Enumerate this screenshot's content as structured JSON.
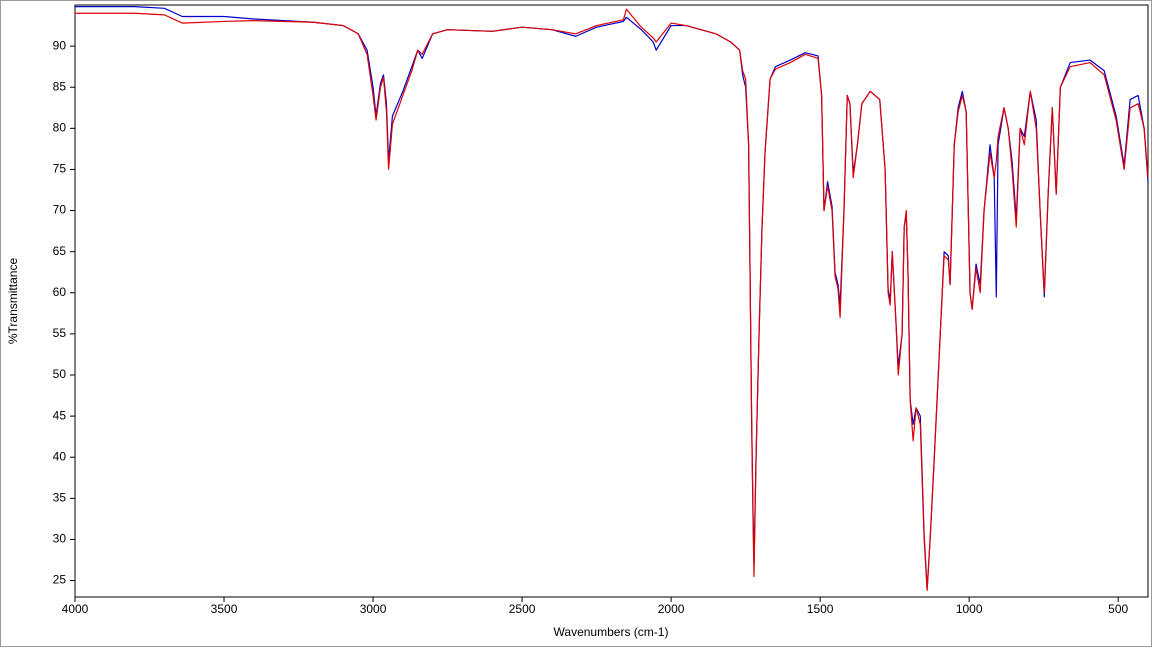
{
  "chart_data": {
    "type": "line",
    "x_label": "Wavenumbers (cm-1)",
    "y_label": "%Transmittance",
    "xlim": [
      4000,
      400
    ],
    "ylim": [
      23,
      95
    ],
    "xticks": [
      4000,
      3500,
      3000,
      2500,
      2000,
      1500,
      1000,
      500
    ],
    "yticks": [
      25,
      30,
      35,
      40,
      45,
      50,
      55,
      60,
      65,
      70,
      75,
      80,
      85,
      90
    ],
    "grid": false,
    "x": [
      4000,
      3800,
      3700,
      3640,
      3500,
      3400,
      3200,
      3100,
      3050,
      3020,
      3000,
      2990,
      2975,
      2965,
      2955,
      2948,
      2935,
      2900,
      2870,
      2850,
      2835,
      2800,
      2750,
      2600,
      2500,
      2400,
      2320,
      2250,
      2160,
      2150,
      2100,
      2060,
      2050,
      2000,
      1950,
      1900,
      1850,
      1800,
      1770,
      1760,
      1750,
      1740,
      1735,
      1730,
      1725,
      1722,
      1715,
      1705,
      1695,
      1685,
      1668,
      1650,
      1600,
      1550,
      1507,
      1495,
      1487,
      1475,
      1460,
      1450,
      1440,
      1433,
      1420,
      1409,
      1400,
      1389,
      1375,
      1360,
      1332,
      1300,
      1282,
      1272,
      1265,
      1258,
      1245,
      1238,
      1225,
      1218,
      1211,
      1205,
      1198,
      1188,
      1178,
      1164,
      1151,
      1141,
      1131,
      1117,
      1097,
      1084,
      1070,
      1064,
      1050,
      1037,
      1023,
      1010,
      997,
      990,
      977,
      963,
      950,
      930,
      916,
      909,
      903,
      883,
      869,
      856,
      842,
      829,
      815,
      795,
      775,
      762,
      748,
      735,
      721,
      708,
      694,
      661,
      594,
      547,
      507,
      480,
      460,
      433,
      413,
      400
    ],
    "series": [
      {
        "color": "#0000cc",
        "values": [
          94.8,
          94.8,
          94.6,
          93.6,
          93.6,
          93.3,
          92.9,
          92.5,
          91.5,
          89.5,
          85,
          81.5,
          85.5,
          86.5,
          83,
          76,
          81.5,
          84.5,
          87.5,
          89.5,
          88.5,
          91.5,
          92,
          91.8,
          92.3,
          92,
          91.2,
          92.3,
          93,
          93.5,
          92,
          90.5,
          89.5,
          92.5,
          92.5,
          92,
          91.5,
          90.5,
          89.5,
          86.5,
          85,
          78,
          62,
          45,
          33,
          27,
          40,
          55,
          68,
          77,
          86,
          87.5,
          88.3,
          89.2,
          88.8,
          84,
          70,
          73.5,
          70.5,
          62.5,
          61,
          58.5,
          70,
          84,
          83,
          74.5,
          78,
          83,
          84.5,
          83.5,
          75,
          60.5,
          59,
          65,
          56,
          51,
          55,
          68,
          69.5,
          62,
          47,
          44,
          46,
          45,
          30.5,
          24,
          30,
          40,
          55,
          65,
          64.5,
          61,
          78,
          82.5,
          84.5,
          82,
          60,
          58,
          63.5,
          61,
          70,
          78,
          74,
          59.5,
          78,
          82.5,
          80,
          76,
          69,
          80,
          79,
          84.5,
          81,
          70,
          59.5,
          72,
          82.5,
          72,
          85,
          88,
          88.3,
          87,
          81.5,
          75.5,
          83.5,
          84,
          80,
          73.5
        ]
      },
      {
        "color": "#e00000",
        "values": [
          94.0,
          94.0,
          93.8,
          92.8,
          93.0,
          93.1,
          92.9,
          92.5,
          91.5,
          89,
          84,
          81,
          85,
          86.2,
          82,
          75,
          80.5,
          84,
          87,
          89.5,
          89,
          91.5,
          92,
          91.8,
          92.3,
          92,
          91.5,
          92.5,
          93.2,
          94.5,
          92.3,
          91,
          90.5,
          92.8,
          92.5,
          92,
          91.5,
          90.5,
          89.5,
          87,
          86,
          78,
          62,
          45,
          32,
          25.5,
          40,
          55,
          68,
          77,
          86,
          87.2,
          88,
          89,
          88.5,
          84,
          70,
          73,
          70,
          62,
          60.5,
          57,
          70,
          84,
          83,
          74,
          78,
          83,
          84.5,
          83.5,
          75,
          60,
          58.5,
          65,
          56,
          50,
          55,
          68,
          70,
          62,
          47,
          42,
          46,
          44,
          30,
          23.8,
          30,
          40,
          55,
          64.5,
          64,
          61,
          78,
          82,
          84,
          82,
          60,
          58,
          63,
          60,
          70,
          77,
          74,
          76,
          79,
          82.5,
          80,
          75,
          68,
          80,
          78,
          84.5,
          80,
          70,
          60,
          72,
          82.5,
          72,
          85,
          87.5,
          88,
          86.5,
          81,
          75,
          82.5,
          83,
          80,
          74
        ]
      }
    ]
  }
}
